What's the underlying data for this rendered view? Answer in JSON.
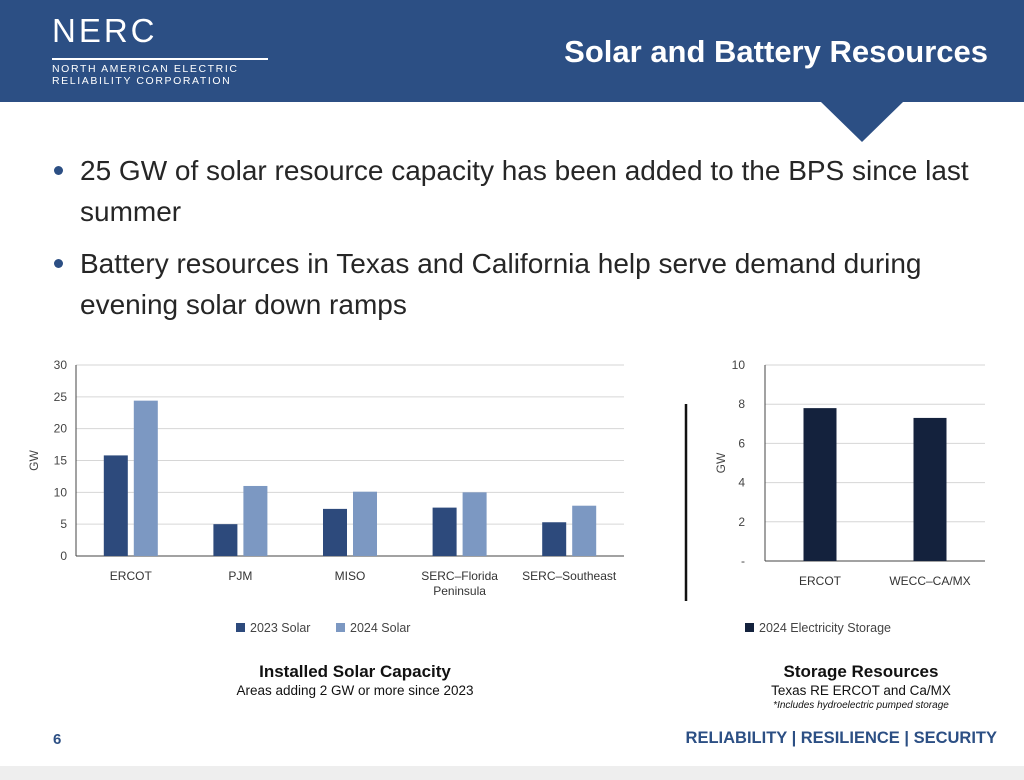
{
  "header": {
    "logo_text": "NERC",
    "logo_sub_line1": "NORTH AMERICAN ELECTRIC",
    "logo_sub_line2": "RELIABILITY CORPORATION",
    "title": "Solar and Battery Resources",
    "background": "#2c4f84"
  },
  "bullets": [
    {
      "text": "25 GW of solar resource capacity has been added to the BPS since last summer"
    },
    {
      "text": "Battery resources in Texas and California help serve demand during evening solar down ramps"
    }
  ],
  "chart_data": [
    {
      "type": "bar",
      "title": "Installed Solar Capacity",
      "subtitle": "Areas adding 2 GW or more since 2023",
      "ylabel": "GW",
      "xlabel": "",
      "ylim": [
        0,
        30
      ],
      "yticks": [
        "0",
        "5",
        "10",
        "15",
        "20",
        "25",
        "30"
      ],
      "grid": true,
      "legend": "bottom",
      "categories": [
        "ERCOT",
        "PJM",
        "MISO",
        "SERC–Florida Peninsula",
        "SERC–Southeast"
      ],
      "category_lines": [
        [
          "ERCOT"
        ],
        [
          "PJM"
        ],
        [
          "MISO"
        ],
        [
          "SERC–Florida",
          "Peninsula"
        ],
        [
          "SERC–Southeast"
        ]
      ],
      "series": [
        {
          "name": "2023 Solar",
          "color": "#2d4a7c",
          "values": [
            15.8,
            5.0,
            7.4,
            7.6,
            5.3
          ]
        },
        {
          "name": "2024 Solar",
          "color": "#7c98c2",
          "values": [
            24.4,
            11.0,
            10.1,
            10.0,
            7.9
          ]
        }
      ]
    },
    {
      "type": "bar",
      "title": "Storage Resources",
      "subtitle": "Texas RE ERCOT and Ca/MX",
      "note": "*Includes hydroelectric pumped storage",
      "ylabel": "GW",
      "xlabel": "",
      "ylim": [
        0,
        10
      ],
      "yticks": [
        "-",
        "2",
        "4",
        "6",
        "8",
        "10"
      ],
      "grid": true,
      "legend": "bottom",
      "categories": [
        "ERCOT",
        "WECC–CA/MX"
      ],
      "category_lines": [
        [
          "ERCOT"
        ],
        [
          "WECC–CA/MX"
        ]
      ],
      "series": [
        {
          "name": "2024 Electricity Storage",
          "color": "#14223d",
          "values": [
            7.8,
            7.3
          ]
        }
      ]
    }
  ],
  "footer": {
    "page_number": "6",
    "tagline": "RELIABILITY | RESILIENCE | SECURITY"
  }
}
